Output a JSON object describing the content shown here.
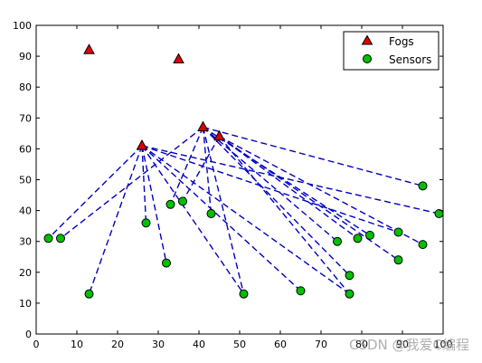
{
  "chart_data": {
    "type": "scatter",
    "xlim": [
      0,
      100
    ],
    "ylim": [
      0,
      100
    ],
    "xticks": [
      0,
      10,
      20,
      30,
      40,
      50,
      60,
      70,
      80,
      90,
      100
    ],
    "yticks": [
      0,
      10,
      20,
      30,
      40,
      50,
      60,
      70,
      80,
      90,
      100
    ],
    "grid": false,
    "legend_position": "top-right",
    "series": [
      {
        "name": "Fogs",
        "marker": "triangle",
        "color": "#e00000",
        "points": [
          [
            13,
            92
          ],
          [
            35,
            89
          ],
          [
            26,
            61
          ],
          [
            41,
            67
          ],
          [
            45,
            64
          ]
        ]
      },
      {
        "name": "Sensors",
        "marker": "circle",
        "color": "#00c000",
        "points": [
          [
            3,
            31
          ],
          [
            6,
            31
          ],
          [
            13,
            13
          ],
          [
            27,
            36
          ],
          [
            32,
            23
          ],
          [
            33,
            42
          ],
          [
            36,
            43
          ],
          [
            43,
            39
          ],
          [
            51,
            13
          ],
          [
            65,
            14
          ],
          [
            74,
            30
          ],
          [
            77,
            19
          ],
          [
            77,
            13
          ],
          [
            79,
            31
          ],
          [
            82,
            32
          ],
          [
            89,
            33
          ],
          [
            89,
            24
          ],
          [
            95,
            48
          ],
          [
            95,
            29
          ],
          [
            99,
            39
          ]
        ]
      }
    ],
    "links": {
      "color": "#0000c0",
      "style": "dashed",
      "pairs": [
        [
          [
            26,
            61
          ],
          [
            3,
            31
          ]
        ],
        [
          [
            26,
            61
          ],
          [
            13,
            13
          ]
        ],
        [
          [
            26,
            61
          ],
          [
            27,
            36
          ]
        ],
        [
          [
            26,
            61
          ],
          [
            32,
            23
          ]
        ],
        [
          [
            26,
            61
          ],
          [
            51,
            13
          ]
        ],
        [
          [
            26,
            61
          ],
          [
            65,
            14
          ]
        ],
        [
          [
            26,
            61
          ],
          [
            77,
            13
          ]
        ],
        [
          [
            26,
            61
          ],
          [
            89,
            33
          ]
        ],
        [
          [
            26,
            61
          ],
          [
            99,
            39
          ]
        ],
        [
          [
            41,
            67
          ],
          [
            6,
            31
          ]
        ],
        [
          [
            41,
            67
          ],
          [
            33,
            42
          ]
        ],
        [
          [
            41,
            67
          ],
          [
            43,
            39
          ]
        ],
        [
          [
            41,
            67
          ],
          [
            51,
            13
          ]
        ],
        [
          [
            41,
            67
          ],
          [
            74,
            30
          ]
        ],
        [
          [
            41,
            67
          ],
          [
            77,
            19
          ]
        ],
        [
          [
            41,
            67
          ],
          [
            82,
            32
          ]
        ],
        [
          [
            41,
            67
          ],
          [
            95,
            48
          ]
        ],
        [
          [
            45,
            64
          ],
          [
            36,
            43
          ]
        ],
        [
          [
            45,
            64
          ],
          [
            77,
            13
          ]
        ],
        [
          [
            45,
            64
          ],
          [
            79,
            31
          ]
        ],
        [
          [
            45,
            64
          ],
          [
            89,
            24
          ]
        ],
        [
          [
            45,
            64
          ],
          [
            95,
            29
          ]
        ]
      ]
    }
  },
  "watermark": "CSDN @我爱C编程"
}
